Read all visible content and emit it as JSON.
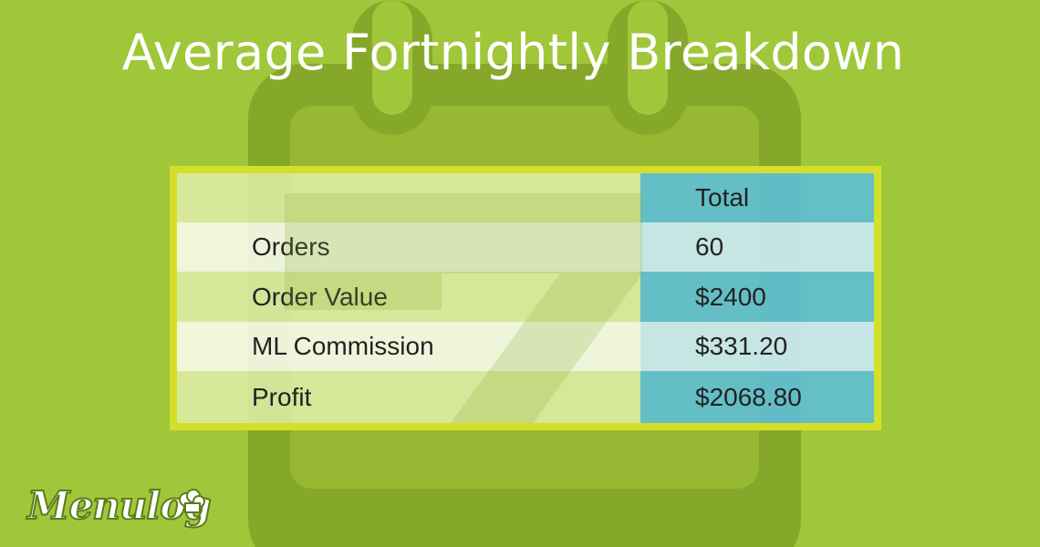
{
  "title": "Average Fortnightly Breakdown",
  "table": {
    "header": {
      "label": "",
      "value": "Total"
    },
    "rows": [
      {
        "label": "Orders",
        "value": "60"
      },
      {
        "label": "Order Value",
        "value": "$2400"
      },
      {
        "label": "ML Commission",
        "value": "$331.20"
      },
      {
        "label": "Profit",
        "value": "$2068.80"
      }
    ]
  },
  "logo": {
    "text": "Menulog"
  },
  "colors": {
    "background": "#a0c63a",
    "calendar": "#86a82a",
    "table_border": "#d4df2a",
    "value_cell_dark": "#5fbed2",
    "value_cell_light": "#c8e8ee"
  },
  "icons": [
    "calendar-icon",
    "chef-hat-icon"
  ]
}
